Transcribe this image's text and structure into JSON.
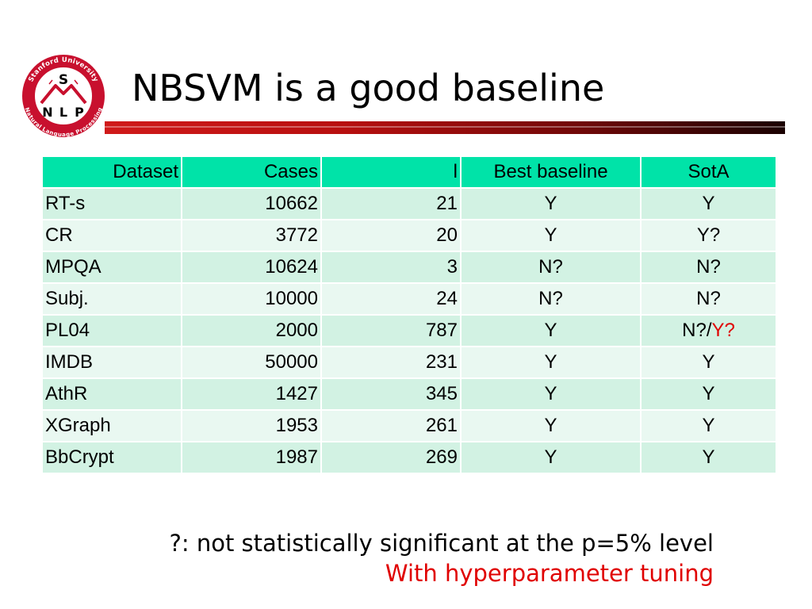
{
  "slide": {
    "title": "NBSVM is a good baseline"
  },
  "logo": {
    "arc_top": "Stanford University",
    "arc_bottom": "Natural Language Processing",
    "letter_s": "S",
    "letters": [
      "N",
      "L",
      "P"
    ],
    "colors": {
      "red": "#c8102e"
    }
  },
  "table": {
    "headers": [
      "Dataset",
      "Cases",
      "l",
      "Best baseline",
      "SotA"
    ],
    "rows": [
      {
        "dataset": "RT-s",
        "cases": "10662",
        "l": "21",
        "best": "Y",
        "sota": "Y",
        "sota_extra": ""
      },
      {
        "dataset": "CR",
        "cases": "3772",
        "l": "20",
        "best": "Y",
        "sota": "Y?",
        "sota_extra": ""
      },
      {
        "dataset": "MPQA",
        "cases": "10624",
        "l": "3",
        "best": "N?",
        "sota": "N?",
        "sota_extra": ""
      },
      {
        "dataset": "Subj.",
        "cases": "10000",
        "l": "24",
        "best": "N?",
        "sota": "N?",
        "sota_extra": ""
      },
      {
        "dataset": "PL04",
        "cases": "2000",
        "l": "787",
        "best": "Y",
        "sota": "N?/",
        "sota_extra": "Y?"
      },
      {
        "dataset": "IMDB",
        "cases": "50000",
        "l": "231",
        "best": "Y",
        "sota": "Y",
        "sota_extra": ""
      },
      {
        "dataset": "AthR",
        "cases": "1427",
        "l": "345",
        "best": "Y",
        "sota": "Y",
        "sota_extra": ""
      },
      {
        "dataset": "XGraph",
        "cases": "1953",
        "l": "261",
        "best": "Y",
        "sota": "Y",
        "sota_extra": ""
      },
      {
        "dataset": "BbCrypt",
        "cases": "1987",
        "l": "269",
        "best": "Y",
        "sota": "Y",
        "sota_extra": ""
      }
    ],
    "colors": {
      "header": "#00e3a8",
      "row_odd": "#d2f2e3",
      "row_even": "#e9f8f1",
      "highlight": "#e00000"
    }
  },
  "footnote": {
    "line1": "?: not statistically significant at the p=5% level",
    "line2": "With hyperparameter tuning"
  }
}
